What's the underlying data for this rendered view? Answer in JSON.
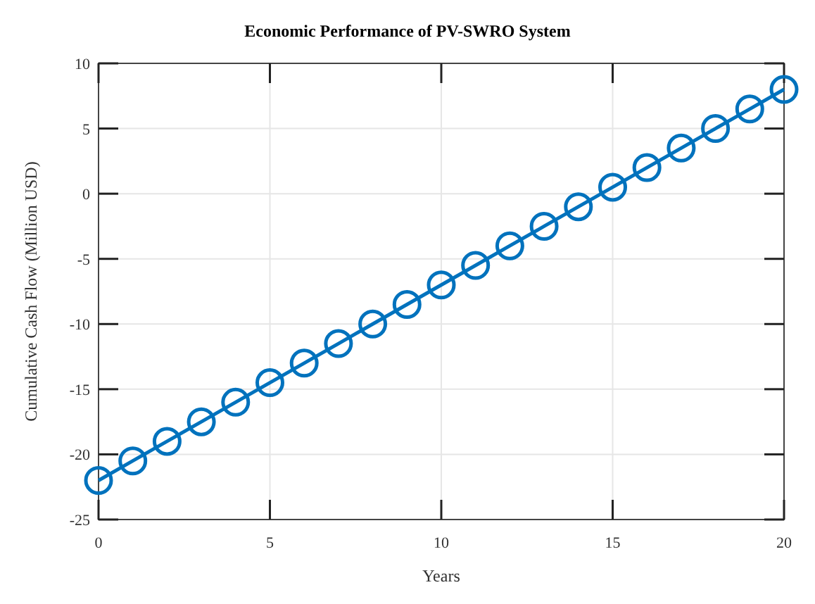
{
  "chart_data": {
    "type": "line",
    "title": "Economic Performance of PV-SWRO System",
    "xlabel": "Years",
    "ylabel": "Cumulative Cash Flow (Million USD)",
    "x": [
      0,
      1,
      2,
      3,
      4,
      5,
      6,
      7,
      8,
      9,
      10,
      11,
      12,
      13,
      14,
      15,
      16,
      17,
      18,
      19,
      20
    ],
    "series": [
      {
        "color": "#0072bd",
        "values": [
          -22,
          -20.5,
          -19,
          -17.5,
          -16,
          -14.5,
          -13,
          -11.5,
          -10,
          -8.5,
          -7,
          -5.5,
          -4,
          -2.5,
          -1,
          0.5,
          2,
          3.5,
          5,
          6.5,
          8
        ]
      }
    ],
    "xlim": [
      0,
      20
    ],
    "xticks": [
      0,
      5,
      10,
      15,
      20
    ],
    "ylim": [
      -25,
      10
    ],
    "yticks": [
      -25,
      -20,
      -15,
      -10,
      -5,
      0,
      5,
      10
    ],
    "grid": true,
    "marker": "circle",
    "line_style": "solid"
  }
}
